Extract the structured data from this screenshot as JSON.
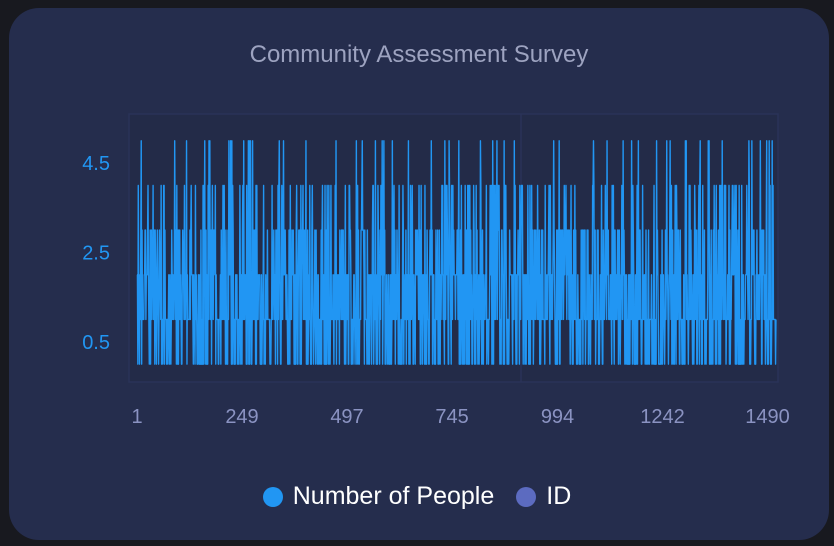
{
  "colors": {
    "background": "#18191f",
    "card": "#252d4d",
    "plot_bg": "#232b48",
    "primary_series": "#2196f3",
    "secondary_series": "#5c6bc0",
    "title": "#9da3c0",
    "y_tick": "#2196f3",
    "x_tick": "#8b93c2"
  },
  "chart_data": {
    "type": "line",
    "title": "Community Assessment Survey",
    "xlabel": "",
    "ylabel": "",
    "x_range": [
      1,
      1510
    ],
    "y_range": [
      -0.4,
      5.6
    ],
    "y_ticks": [
      "4.5",
      "2.5",
      "0.5"
    ],
    "x_ticks": [
      "1",
      "249",
      "497",
      "745",
      "994",
      "1242",
      "1490"
    ],
    "grid": false,
    "legend_position": "bottom",
    "series": [
      {
        "name": "Number of People",
        "color": "#2196f3",
        "value_set": [
          0,
          1,
          2,
          3,
          4,
          5
        ],
        "weights": [
          0.22,
          0.28,
          0.22,
          0.13,
          0.11,
          0.04
        ],
        "point_count": 1510
      },
      {
        "name": "ID",
        "color": "#5c6bc0",
        "values": []
      }
    ]
  },
  "legend": {
    "items": [
      {
        "label": "Number of People",
        "color": "#2196f3"
      },
      {
        "label": "ID",
        "color": "#5c6bc0"
      }
    ]
  }
}
